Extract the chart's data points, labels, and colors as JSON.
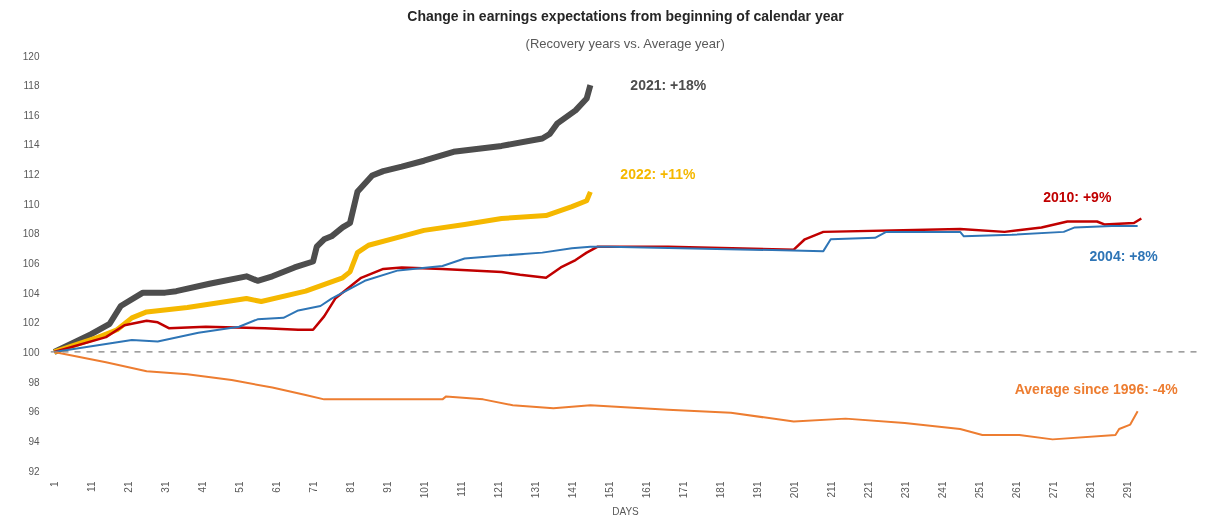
{
  "chart_data": {
    "type": "line",
    "title": "Change in earnings expectations from beginning of calendar year",
    "subtitle": "(Recovery years vs. Average year)",
    "xlabel": "DAYS",
    "xlim": [
      0,
      311
    ],
    "xticks": [
      1,
      11,
      21,
      31,
      41,
      51,
      61,
      71,
      81,
      91,
      101,
      111,
      121,
      131,
      141,
      151,
      161,
      171,
      181,
      191,
      201,
      211,
      221,
      231,
      241,
      251,
      261,
      271,
      281,
      291
    ],
    "ylim": [
      92,
      120
    ],
    "yticks": [
      92,
      94,
      96,
      98,
      100,
      102,
      104,
      106,
      108,
      110,
      112,
      114,
      116,
      118,
      120
    ],
    "grid": false,
    "line_style": "solid",
    "ref_lines": [
      {
        "axis": "y",
        "value": 100,
        "color": "#808080",
        "line_style": "dashed"
      }
    ],
    "series": [
      {
        "name": "2021: +18%",
        "color": "#4d4d4d",
        "x": [
          1,
          11,
          16,
          19,
          25,
          31,
          34,
          43,
          53,
          56,
          60,
          66,
          71,
          72,
          74,
          76,
          79,
          81,
          83,
          87,
          90,
          95,
          101,
          109,
          122,
          133,
          135,
          137,
          142,
          145,
          146
        ],
        "values": [
          100,
          101.2,
          101.9,
          103.1,
          104,
          104,
          104.1,
          104.6,
          105.1,
          104.8,
          105.1,
          105.7,
          106.1,
          107.1,
          107.6,
          107.8,
          108.4,
          108.7,
          110.8,
          111.9,
          112.2,
          112.5,
          112.9,
          113.5,
          113.9,
          114.4,
          114.7,
          115.4,
          116.3,
          117.1,
          118
        ]
      },
      {
        "name": "2022: +11%",
        "color": "#f5b800",
        "x": [
          1,
          13,
          18,
          22,
          26,
          37,
          53,
          57,
          69,
          79,
          81,
          83,
          86,
          95,
          101,
          112,
          122,
          134,
          141,
          145,
          146
        ],
        "values": [
          100,
          101,
          101.5,
          102.3,
          102.7,
          103,
          103.6,
          103.4,
          104.1,
          105,
          105.4,
          106.7,
          107.2,
          107.8,
          108.2,
          108.6,
          109,
          109.2,
          109.8,
          110.2,
          110.8
        ]
      },
      {
        "name": "2010: +9%",
        "color": "#c00000",
        "x": [
          1,
          15,
          20,
          26,
          29,
          32,
          42,
          58,
          67,
          71,
          74,
          77,
          84,
          90,
          95,
          106,
          122,
          127,
          134,
          138,
          142,
          145,
          148,
          167,
          201,
          204,
          209,
          246,
          258,
          268,
          275,
          283,
          285,
          293,
          295
        ],
        "values": [
          100,
          101,
          101.8,
          102.1,
          102,
          101.6,
          101.7,
          101.6,
          101.5,
          101.5,
          102.4,
          103.6,
          105,
          105.6,
          105.7,
          105.6,
          105.4,
          105.2,
          105,
          105.7,
          106.2,
          106.7,
          107.1,
          107.1,
          106.9,
          107.6,
          108.1,
          108.3,
          108.1,
          108.4,
          108.8,
          108.8,
          108.6,
          108.7,
          109
        ]
      },
      {
        "name": "2004: +8%",
        "color": "#2e75b6",
        "x": [
          1,
          22,
          29,
          40,
          51,
          56,
          63,
          67,
          73,
          76,
          85,
          94,
          106,
          112,
          122,
          133,
          141,
          146,
          151,
          209,
          211,
          223,
          226,
          246,
          247,
          260,
          274,
          277,
          287,
          294
        ],
        "values": [
          100,
          100.8,
          100.7,
          101.3,
          101.7,
          102.2,
          102.3,
          102.8,
          103.1,
          103.6,
          104.8,
          105.5,
          105.8,
          106.3,
          106.5,
          106.7,
          107,
          107.1,
          107.1,
          106.8,
          107.6,
          107.7,
          108.1,
          108.1,
          107.8,
          107.9,
          108.1,
          108.4,
          108.5,
          108.5
        ]
      },
      {
        "name": "Average since 1996: -4%",
        "color": "#ed7d31",
        "x": [
          1,
          15,
          26,
          37,
          49,
          60,
          69,
          74,
          90,
          106,
          107,
          117,
          125,
          136,
          146,
          167,
          184,
          201,
          215,
          231,
          246,
          252,
          262,
          271,
          288,
          289,
          292,
          294
        ],
        "values": [
          100,
          99.3,
          98.7,
          98.5,
          98.1,
          97.6,
          97.1,
          96.8,
          96.8,
          96.8,
          97,
          96.8,
          96.4,
          96.2,
          96.4,
          96.1,
          95.9,
          95.3,
          95.5,
          95.2,
          94.8,
          94.4,
          94.4,
          94.1,
          94.4,
          94.8,
          95.1,
          96
        ]
      }
    ]
  }
}
